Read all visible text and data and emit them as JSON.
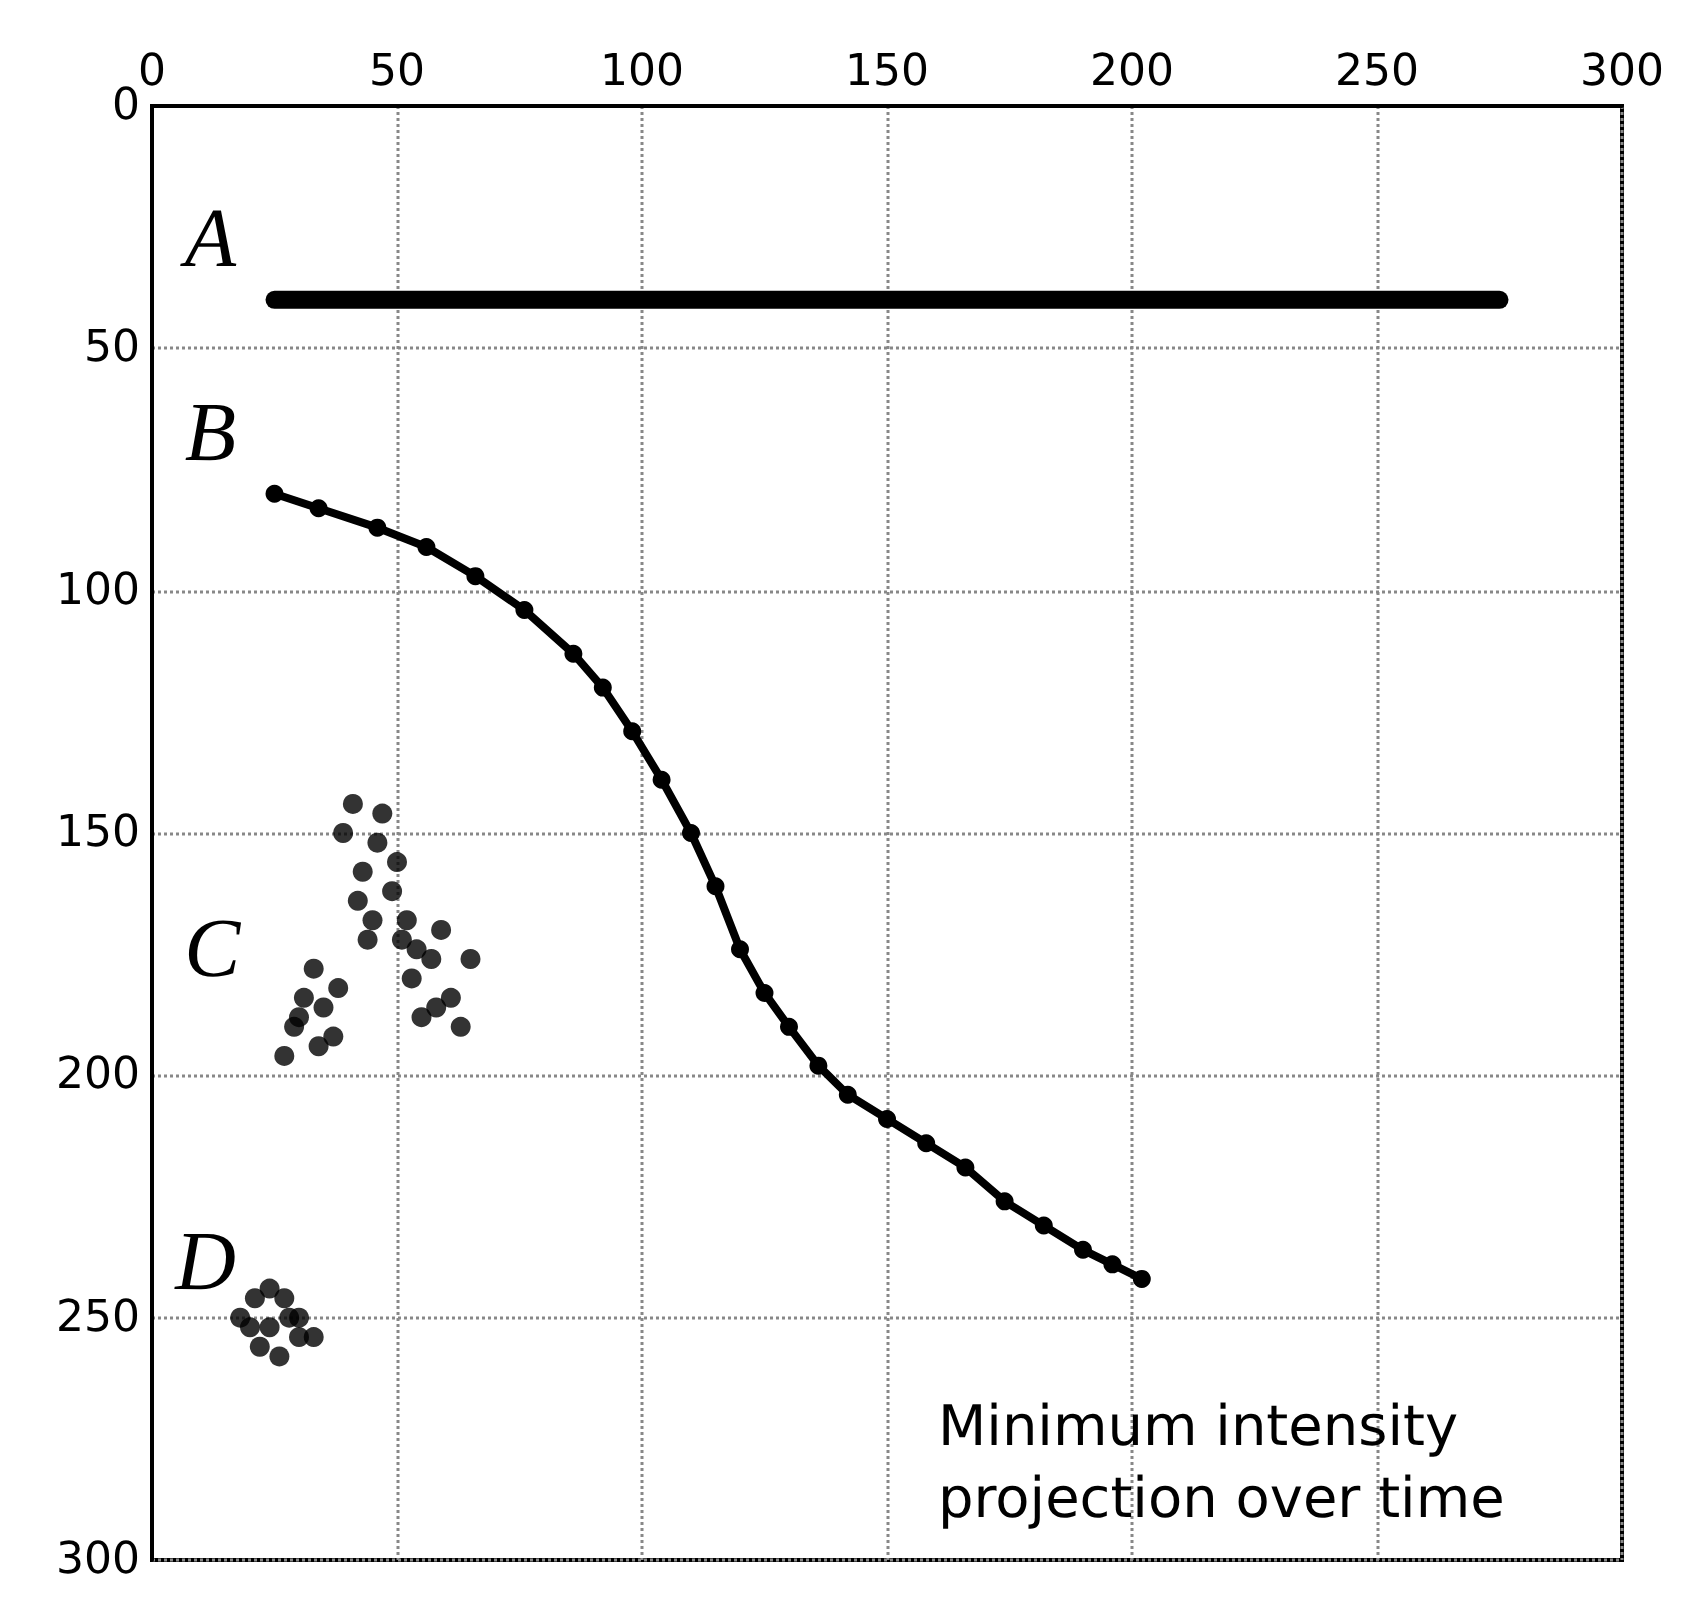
{
  "chart_data": {
    "type": "line",
    "xlim": [
      0,
      300
    ],
    "ylim": [
      300,
      0
    ],
    "xticks": [
      0,
      50,
      100,
      150,
      200,
      250,
      300
    ],
    "yticks": [
      0,
      50,
      100,
      150,
      200,
      250,
      300
    ],
    "grid": true,
    "legend": false,
    "series": [
      {
        "name": "A",
        "marker": "none",
        "color": "#000000",
        "x": [
          25,
          275
        ],
        "values": [
          40,
          40
        ]
      },
      {
        "name": "B",
        "marker": "circle",
        "color": "#000000",
        "x": [
          25,
          34,
          46,
          56,
          66,
          76,
          86,
          92,
          98,
          104,
          110,
          115,
          120,
          125,
          130,
          136,
          142,
          150,
          158,
          166,
          174,
          182,
          190,
          196,
          202
        ],
        "values": [
          80,
          83,
          87,
          91,
          97,
          104,
          113,
          120,
          129,
          139,
          150,
          161,
          174,
          183,
          190,
          198,
          204,
          209,
          214,
          219,
          226,
          231,
          236,
          239,
          242
        ]
      },
      {
        "name": "C",
        "type": "scatter",
        "marker": "circle",
        "color": "#000000",
        "x": [
          27,
          29,
          31,
          33,
          35,
          37,
          39,
          41,
          43,
          45,
          47,
          49,
          51,
          53,
          55,
          57,
          59,
          61,
          63,
          65,
          34,
          38,
          42,
          46,
          50,
          54,
          58,
          30,
          44,
          52
        ],
        "values": [
          196,
          190,
          184,
          178,
          186,
          192,
          150,
          144,
          158,
          168,
          146,
          162,
          172,
          180,
          188,
          176,
          170,
          184,
          190,
          176,
          194,
          182,
          164,
          152,
          156,
          174,
          186,
          188,
          172,
          168
        ]
      },
      {
        "name": "D",
        "type": "scatter",
        "marker": "circle",
        "color": "#000000",
        "x": [
          18,
          21,
          24,
          27,
          30,
          33,
          22,
          26,
          30,
          24,
          28,
          20
        ],
        "values": [
          250,
          246,
          244,
          246,
          250,
          254,
          256,
          258,
          254,
          252,
          250,
          252
        ]
      }
    ],
    "annotations": [
      "Minimum intensity projection over time"
    ]
  }
}
